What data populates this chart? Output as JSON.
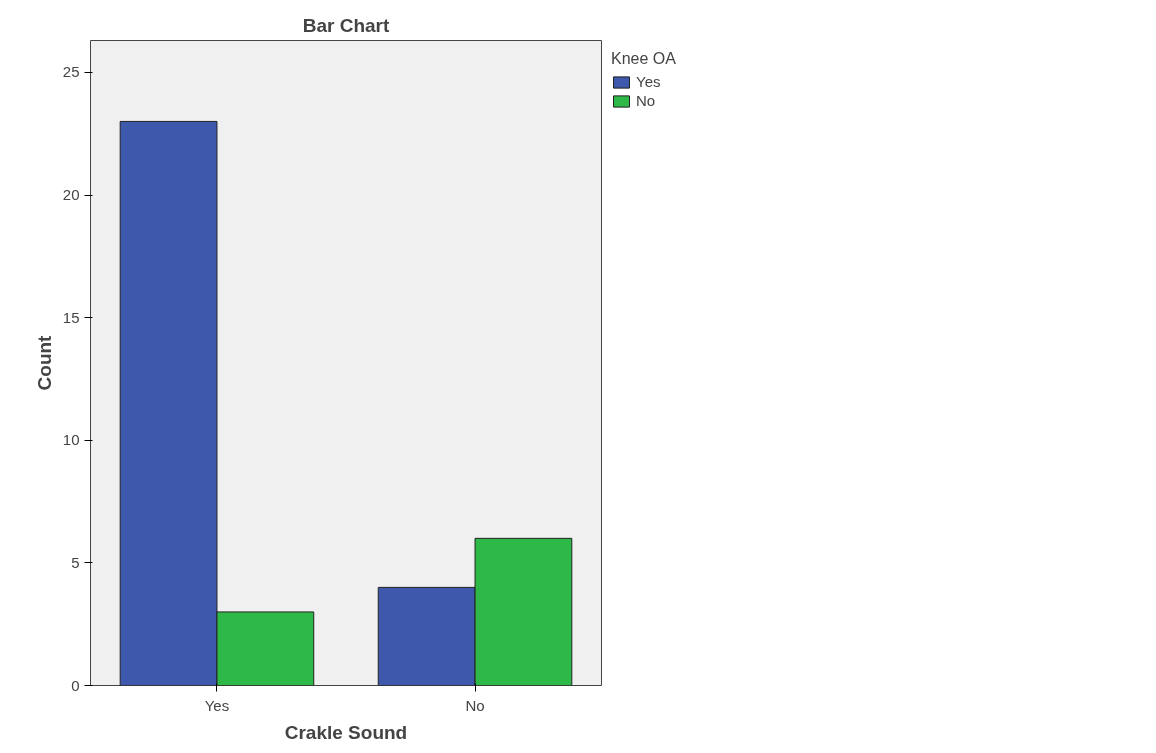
{
  "chart_data": {
    "type": "bar",
    "title": "Bar Chart",
    "xlabel": "Crakle Sound",
    "ylabel": "Count",
    "legend_title": "Knee OA",
    "categories": [
      "Yes",
      "No"
    ],
    "series": [
      {
        "name": "Yes",
        "color": "#3e58ac",
        "values": [
          23,
          4
        ]
      },
      {
        "name": "No",
        "color": "#2eb848",
        "values": [
          3,
          6
        ]
      }
    ],
    "ylim": [
      0,
      26.3
    ],
    "yticks": [
      0,
      5,
      10,
      15,
      20,
      25
    ],
    "grid": false,
    "legend": "top right"
  }
}
